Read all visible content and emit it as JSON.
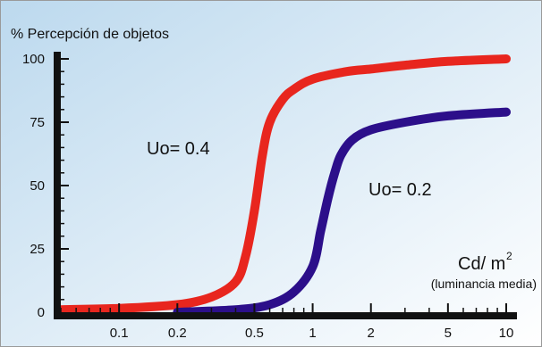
{
  "chart_data": {
    "type": "line",
    "ylabel": "% Percepción de objetos",
    "xlabel": "Cd/ m",
    "xlabel_sup": "2",
    "xlabel_sub": "(luminancia media)",
    "x_scale": "log",
    "xlim": [
      0.05,
      10
    ],
    "ylim": [
      0,
      100
    ],
    "x_ticks": [
      0.1,
      0.2,
      0.5,
      1,
      2,
      5,
      10
    ],
    "x_tick_labels": [
      "0.1",
      "0.2",
      "0.5",
      "1",
      "2",
      "5",
      "10"
    ],
    "y_ticks": [
      0,
      25,
      50,
      75,
      100
    ],
    "y_tick_labels": [
      "0",
      "25",
      "50",
      "75",
      "100"
    ],
    "grid": false,
    "background_colors": [
      "#bcd9ee",
      "#ffffff"
    ],
    "series": [
      {
        "label": "Uo= 0.4",
        "color": "#e8261e",
        "x": [
          0.05,
          0.1,
          0.2,
          0.3,
          0.4,
          0.45,
          0.5,
          0.55,
          0.6,
          0.7,
          0.8,
          1,
          1.5,
          2,
          3,
          5,
          10
        ],
        "y": [
          1,
          1.5,
          3,
          6,
          12,
          22,
          40,
          62,
          75,
          84,
          88,
          92,
          95,
          96,
          97.5,
          99,
          100
        ]
      },
      {
        "label": "Uo= 0.2",
        "color": "#2c0f8a",
        "x": [
          0.2,
          0.4,
          0.6,
          0.8,
          1,
          1.1,
          1.2,
          1.3,
          1.4,
          1.6,
          2,
          3,
          5,
          10
        ],
        "y": [
          0,
          1,
          3,
          8,
          18,
          32,
          45,
          55,
          62,
          68,
          72,
          75,
          77.5,
          79
        ]
      }
    ]
  }
}
